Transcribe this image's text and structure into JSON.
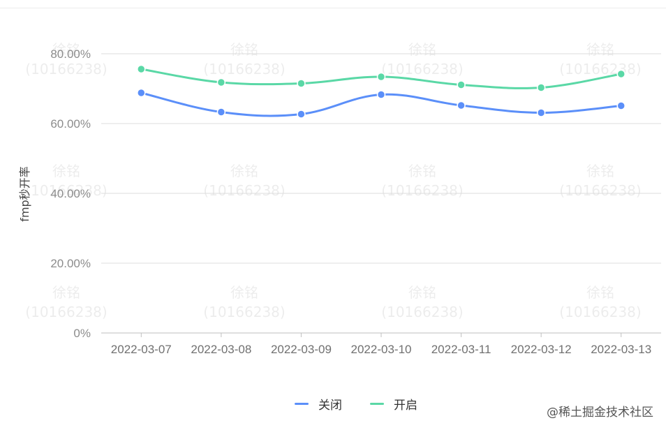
{
  "chart_data": {
    "type": "line",
    "title": "",
    "xlabel": "",
    "ylabel": "fmp秒开率",
    "ylim": [
      0,
      80
    ],
    "y_ticks": [
      "0%",
      "20.00%",
      "40.00%",
      "60.00%",
      "80.00%"
    ],
    "categories": [
      "2022-03-07",
      "2022-03-08",
      "2022-03-09",
      "2022-03-10",
      "2022-03-11",
      "2022-03-12",
      "2022-03-13"
    ],
    "series": [
      {
        "name": "关闭",
        "color": "#5b8ff9",
        "values": [
          68.8,
          63.3,
          62.7,
          68.3,
          65.2,
          63.1,
          65.1
        ]
      },
      {
        "name": "开启",
        "color": "#5ad8a6",
        "values": [
          75.6,
          71.8,
          71.5,
          73.4,
          71.1,
          70.3,
          74.2
        ]
      }
    ],
    "smooth": true,
    "grid": "horizontal",
    "legend_position": "bottom-center"
  },
  "watermark": {
    "name": "徐铭",
    "id": "(10166238)"
  },
  "credit": "@稀土掘金技术社区"
}
